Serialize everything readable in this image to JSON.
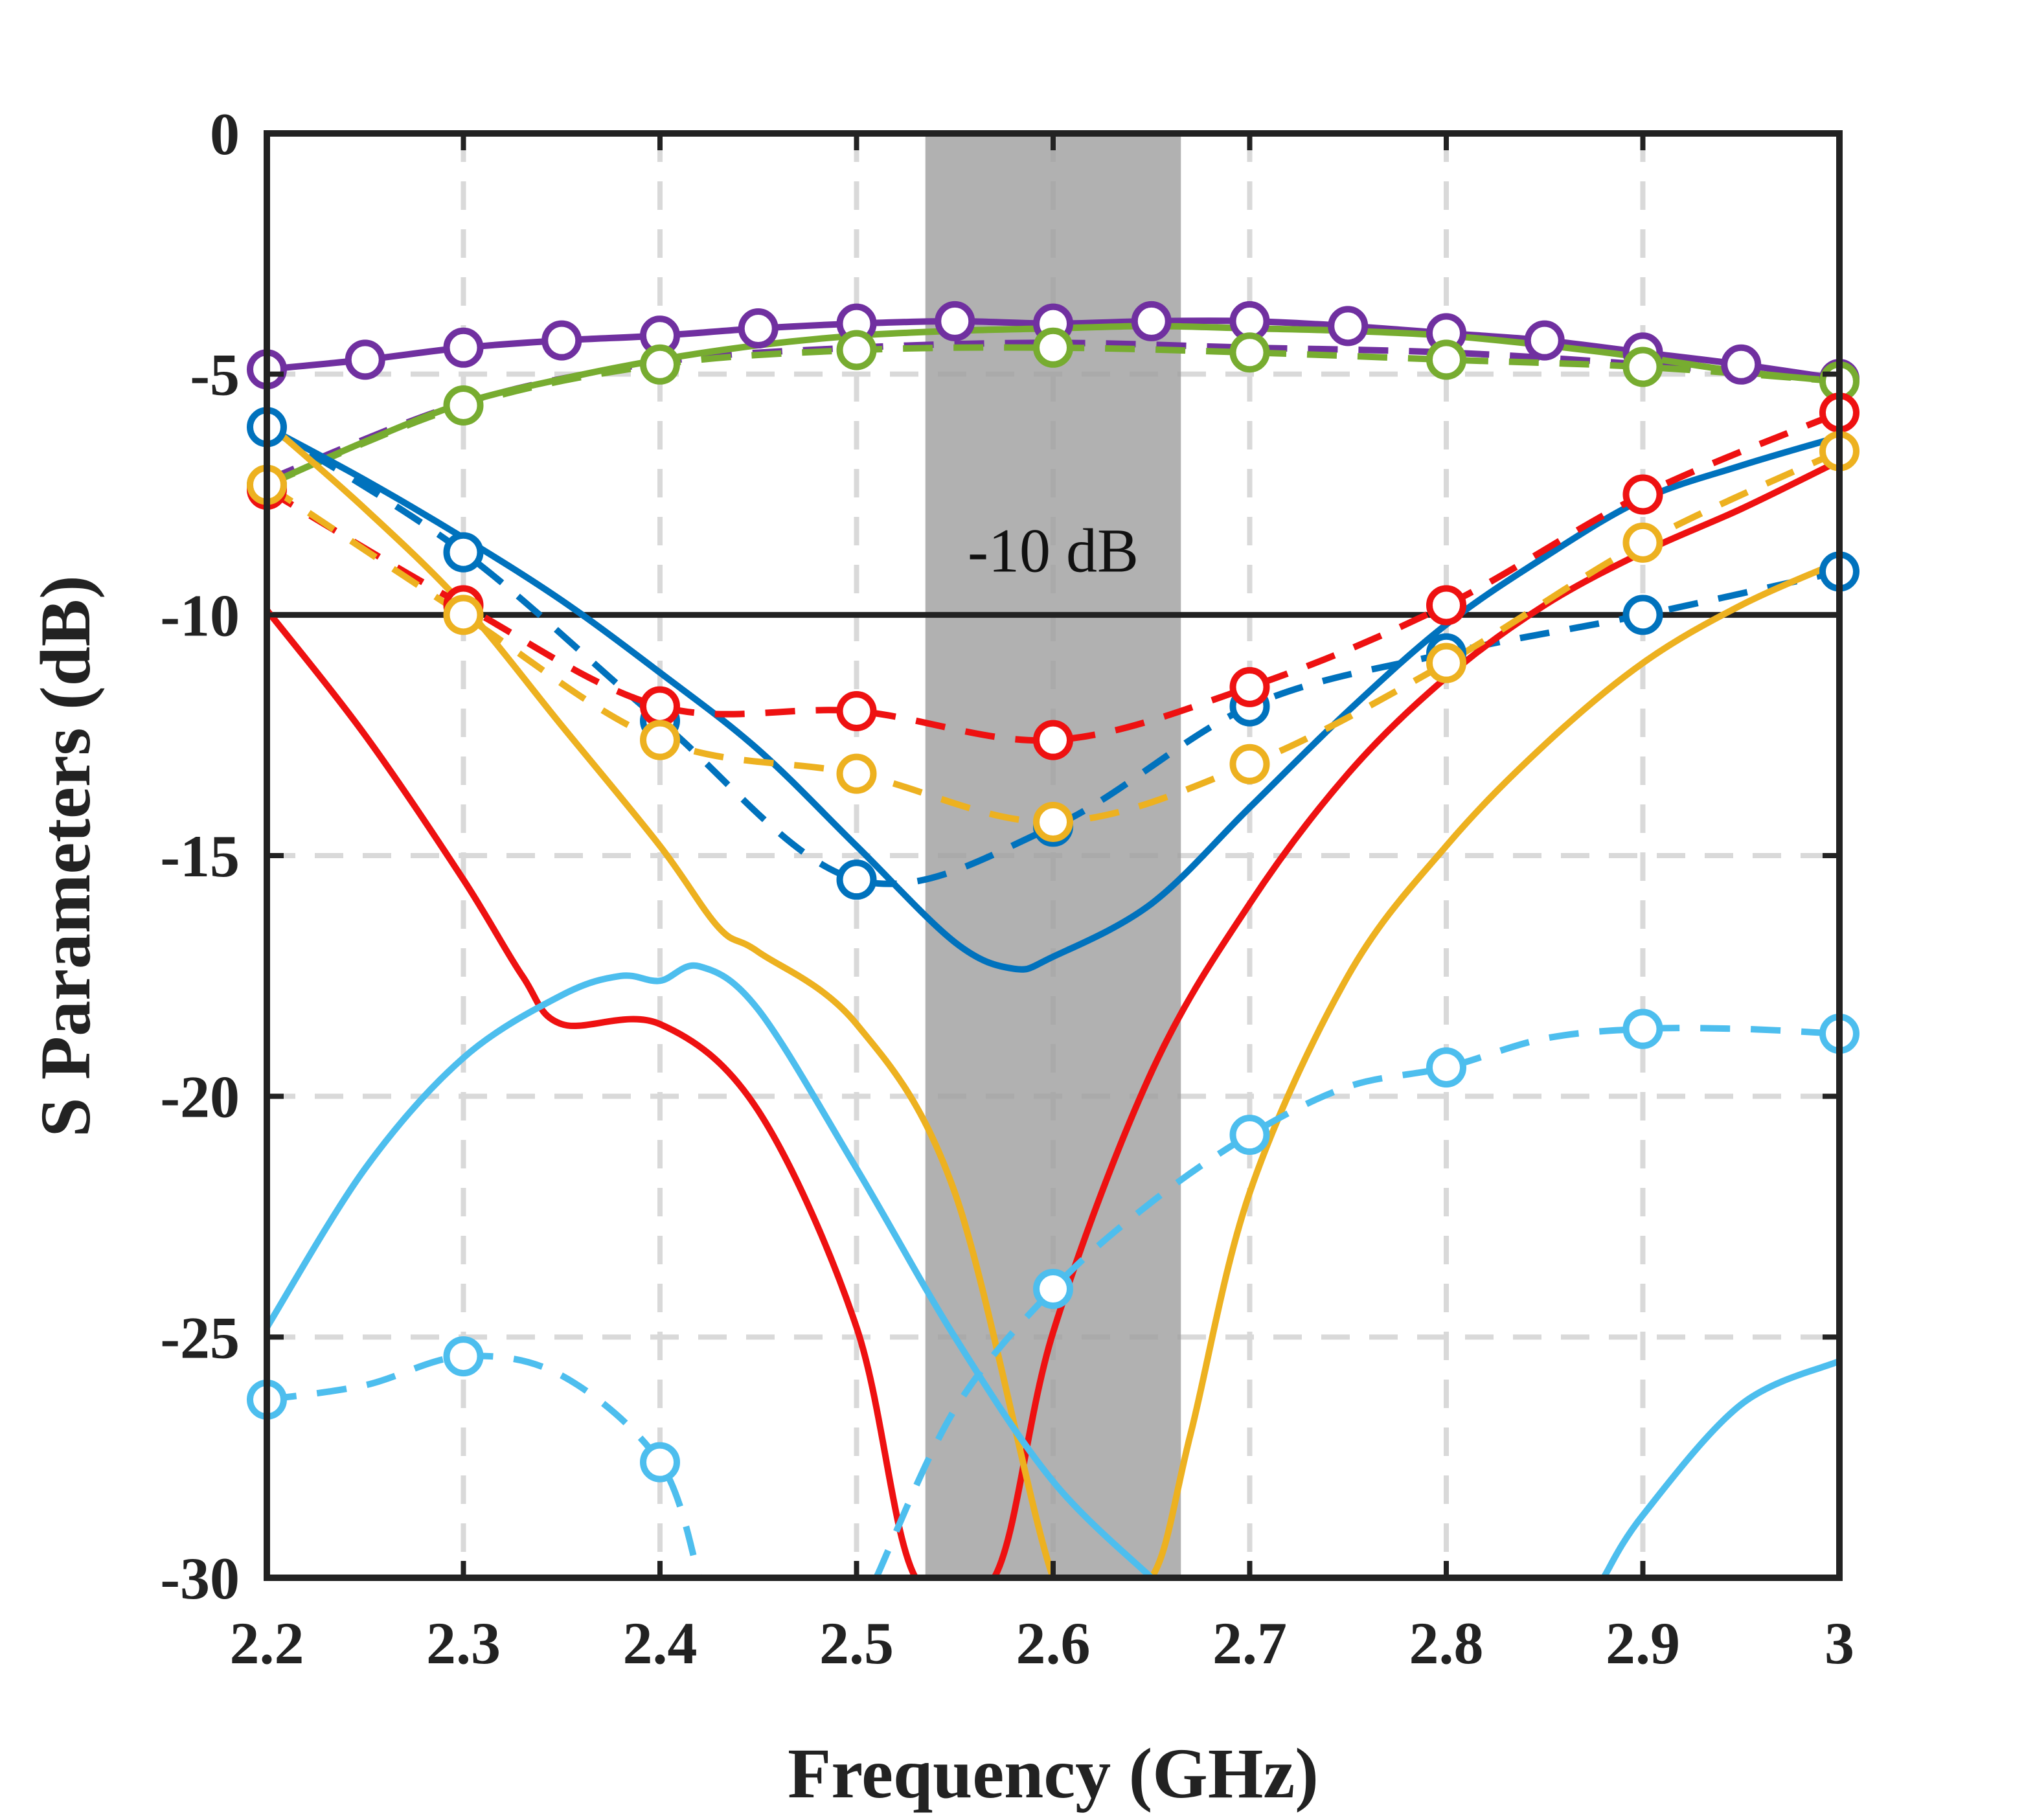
{
  "chart_data": {
    "type": "line",
    "title": "",
    "xlabel": "Frequency (GHz)",
    "ylabel": "S Parameters (dB)",
    "xlim": [
      2.2,
      3.0
    ],
    "ylim": [
      -30,
      0
    ],
    "x_ticks": [
      2.2,
      2.3,
      2.4,
      2.5,
      2.6,
      2.7,
      2.8,
      2.9,
      3.0
    ],
    "x_tick_labels": [
      "2.2",
      "2.3",
      "2.4",
      "2.5",
      "2.6",
      "2.7",
      "2.8",
      "2.9",
      "3"
    ],
    "y_ticks": [
      0,
      -5,
      -10,
      -15,
      -20,
      -25,
      -30
    ],
    "y_tick_labels": [
      "0",
      "-5",
      "-10",
      "-15",
      "-20",
      "-25",
      "-30"
    ],
    "grid": true,
    "colors": {
      "purple": "#7030A0",
      "green": "#77AC30",
      "blue": "#0072BD",
      "red": "#EE1111",
      "orange": "#EDB120",
      "cyan": "#4DBEEE",
      "band": "#A0A0A0",
      "axis": "#222222"
    },
    "shaded_band": {
      "x_start": 2.535,
      "x_end": 2.665
    },
    "reference_line": {
      "y": -10,
      "label": "-10 dB",
      "label_x": 2.6,
      "label_y": -8.7
    },
    "series": [
      {
        "color": "purple",
        "style": "solid",
        "markers": true,
        "x": [
          2.2,
          2.25,
          2.3,
          2.35,
          2.4,
          2.45,
          2.5,
          2.55,
          2.6,
          2.65,
          2.7,
          2.75,
          2.8,
          2.85,
          2.9,
          2.95,
          3.0
        ],
        "y": [
          -4.9,
          -4.7,
          -4.45,
          -4.3,
          -4.2,
          -4.05,
          -3.95,
          -3.9,
          -3.95,
          -3.9,
          -3.9,
          -4.0,
          -4.15,
          -4.3,
          -4.55,
          -4.8,
          -5.1
        ]
      },
      {
        "color": "purple",
        "style": "dashed",
        "markers": false,
        "x": [
          2.2,
          2.3,
          2.4,
          2.5,
          2.6,
          2.7,
          2.8,
          2.9,
          3.0
        ],
        "y": [
          -7.2,
          -5.6,
          -4.75,
          -4.45,
          -4.35,
          -4.45,
          -4.55,
          -4.8,
          -5.15
        ]
      },
      {
        "color": "green",
        "style": "dashed",
        "markers": true,
        "x": [
          2.2,
          2.3,
          2.4,
          2.5,
          2.6,
          2.7,
          2.8,
          2.9,
          3.0
        ],
        "y": [
          -7.3,
          -5.65,
          -4.8,
          -4.5,
          -4.45,
          -4.55,
          -4.7,
          -4.85,
          -5.15
        ]
      },
      {
        "color": "green",
        "style": "solid",
        "markers": false,
        "x": [
          2.2,
          2.25,
          2.3,
          2.35,
          2.4,
          2.45,
          2.5,
          2.55,
          2.6,
          2.65,
          2.7,
          2.75,
          2.8,
          2.85,
          2.9,
          2.95,
          3.0
        ],
        "y": [
          -7.3,
          -6.4,
          -5.6,
          -5.1,
          -4.7,
          -4.4,
          -4.2,
          -4.1,
          -4.05,
          -4.0,
          -4.05,
          -4.1,
          -4.2,
          -4.4,
          -4.65,
          -4.95,
          -5.15
        ]
      },
      {
        "color": "blue",
        "style": "solid",
        "markers": false,
        "x": [
          2.2,
          2.25,
          2.3,
          2.35,
          2.4,
          2.45,
          2.5,
          2.55,
          2.58,
          2.6,
          2.65,
          2.7,
          2.75,
          2.8,
          2.85,
          2.9,
          2.95,
          3.0
        ],
        "y": [
          -6.1,
          -7.2,
          -8.4,
          -9.7,
          -11.2,
          -12.8,
          -14.8,
          -16.8,
          -17.35,
          -17.1,
          -16.0,
          -14.0,
          -12.0,
          -10.2,
          -8.8,
          -7.6,
          -6.9,
          -6.3
        ]
      },
      {
        "color": "blue",
        "style": "dashed",
        "markers": true,
        "x": [
          2.2,
          2.3,
          2.4,
          2.5,
          2.6,
          2.7,
          2.8,
          2.9,
          3.0
        ],
        "y": [
          -6.1,
          -8.7,
          -12.2,
          -15.5,
          -14.4,
          -11.9,
          -10.8,
          -10.0,
          -9.1
        ]
      },
      {
        "color": "red",
        "style": "solid",
        "markers": false,
        "x": [
          2.2,
          2.25,
          2.3,
          2.33,
          2.35,
          2.4,
          2.45,
          2.5,
          2.53,
          2.57,
          2.6,
          2.65,
          2.7,
          2.75,
          2.8,
          2.85,
          2.9,
          2.95,
          3.0
        ],
        "y": [
          -9.9,
          -12.5,
          -15.5,
          -17.5,
          -18.5,
          -18.5,
          -20.3,
          -24.8,
          -30.0,
          -30.0,
          -24.9,
          -19.5,
          -16.0,
          -13.3,
          -11.3,
          -9.8,
          -8.7,
          -7.8,
          -6.8
        ]
      },
      {
        "color": "red",
        "style": "dashed",
        "markers": true,
        "x": [
          2.2,
          2.3,
          2.4,
          2.5,
          2.6,
          2.7,
          2.8,
          2.9,
          3.0
        ],
        "y": [
          -7.4,
          -9.8,
          -11.9,
          -12.0,
          -12.6,
          -11.5,
          -9.8,
          -7.5,
          -5.8
        ]
      },
      {
        "color": "orange",
        "style": "solid",
        "markers": false,
        "x": [
          2.2,
          2.25,
          2.3,
          2.35,
          2.4,
          2.43,
          2.45,
          2.5,
          2.55,
          2.6,
          2.62,
          2.65,
          2.67,
          2.7,
          2.75,
          2.8,
          2.85,
          2.9,
          2.95,
          3.0
        ],
        "y": [
          -6.0,
          -7.8,
          -9.8,
          -12.3,
          -14.8,
          -16.5,
          -17.0,
          -18.5,
          -22.0,
          -30.0,
          -30.0,
          -30.0,
          -27.0,
          -22.0,
          -17.5,
          -14.8,
          -12.7,
          -11.0,
          -9.8,
          -8.9
        ]
      },
      {
        "color": "orange",
        "style": "dashed",
        "markers": true,
        "x": [
          2.2,
          2.3,
          2.4,
          2.5,
          2.6,
          2.7,
          2.8,
          2.9,
          3.0
        ],
        "y": [
          -7.3,
          -10.0,
          -12.6,
          -13.3,
          -14.3,
          -13.1,
          -11.0,
          -8.5,
          -6.6
        ]
      },
      {
        "color": "cyan",
        "style": "solid",
        "markers": false,
        "x": [
          2.2,
          2.25,
          2.3,
          2.35,
          2.38,
          2.4,
          2.42,
          2.45,
          2.5,
          2.55,
          2.6,
          2.65
        ],
        "y": [
          -24.8,
          -21.5,
          -19.2,
          -17.9,
          -17.5,
          -17.6,
          -17.3,
          -18.2,
          -21.5,
          -25.0,
          -28.0,
          -30.0
        ]
      },
      {
        "color": "cyan",
        "style": "solid",
        "markers": false,
        "x": [
          2.88,
          2.9,
          2.95,
          3.0
        ],
        "y": [
          -30.0,
          -28.7,
          -26.4,
          -25.5
        ]
      },
      {
        "color": "cyan",
        "style": "dashed",
        "markers": true,
        "x": [
          2.2,
          2.25,
          2.3,
          2.35,
          2.4,
          2.42
        ],
        "y": [
          -26.3,
          -26.0,
          -25.4,
          -25.8,
          -27.6,
          -30.0
        ],
        "marker_x": [
          2.2,
          2.3,
          2.4
        ],
        "marker_y": [
          -26.3,
          -25.4,
          -27.6
        ]
      },
      {
        "color": "cyan",
        "style": "dashed",
        "markers": true,
        "x": [
          2.51,
          2.55,
          2.6,
          2.65,
          2.7,
          2.75,
          2.8,
          2.85,
          2.9,
          2.95,
          3.0
        ],
        "y": [
          -30.0,
          -26.5,
          -24.0,
          -22.2,
          -20.8,
          -19.8,
          -19.4,
          -18.8,
          -18.6,
          -18.6,
          -18.7
        ],
        "marker_x": [
          2.6,
          2.7,
          2.8,
          2.9,
          3.0
        ],
        "marker_y": [
          -24.0,
          -20.8,
          -19.4,
          -18.6,
          -18.7
        ]
      }
    ]
  }
}
